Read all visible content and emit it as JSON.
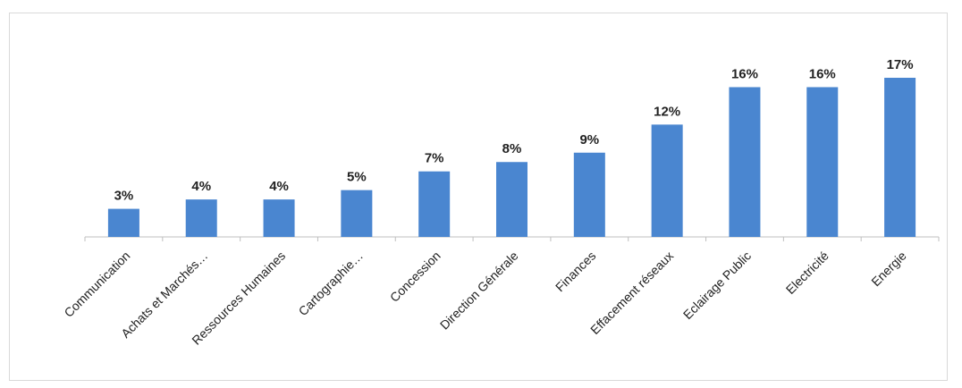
{
  "chart_data": {
    "type": "bar",
    "title": "",
    "xlabel": "",
    "ylabel": "",
    "ylim": [
      0,
      17
    ],
    "grid": false,
    "legend": "none",
    "categories": [
      "Communication",
      "Achats et Marchés…",
      "Ressources Humaines",
      "Cartographie…",
      "Concession",
      "Direction Générale",
      "Finances",
      "Effacement réseaux",
      "Eclairage Public",
      "Electricité",
      "Energie"
    ],
    "values": [
      3,
      4,
      4,
      5,
      7,
      8,
      9,
      12,
      16,
      16,
      17
    ],
    "value_labels": [
      "3%",
      "4%",
      "4%",
      "5%",
      "7%",
      "8%",
      "9%",
      "12%",
      "16%",
      "16%",
      "17%"
    ],
    "bar_color": "#4a86d0",
    "axis_color": "#bfbfbf"
  }
}
